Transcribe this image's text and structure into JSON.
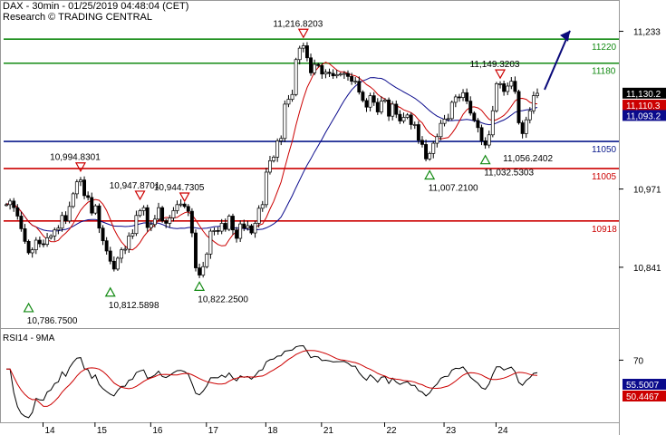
{
  "header": {
    "title": "DAX - 30min - 01/25/2019 04:48:04 (CET)",
    "source": "Research © TRADING CENTRAL"
  },
  "rsi_title": "RSI14 - 9MA",
  "colors": {
    "price": "#000000",
    "ma_red": "#cc0000",
    "ma_blue": "#0a0a8c",
    "resistance": "#138a13",
    "pivot": "#0a1a8c",
    "support": "#cc0000",
    "arrow": "#0a0a7a",
    "grid": "#bbbbbb"
  },
  "chart_data": [
    {
      "type": "candlestick",
      "title": "DAX - 30min",
      "x_ticks": [
        "14",
        "15",
        "16",
        "17",
        "18",
        "21",
        "22",
        "23",
        "24"
      ],
      "y_ticks": [
        "11,233",
        "10,971",
        "10,841"
      ],
      "ylim": [
        10740,
        11285
      ],
      "price_labels": [
        {
          "value": 11130.2,
          "text": "11,130.2",
          "color": "#000000"
        },
        {
          "value": 11110.3,
          "text": "11,110.3",
          "color": "#cc0000"
        },
        {
          "value": 11093.2,
          "text": "11,093.2",
          "color": "#0a0a8c"
        }
      ],
      "levels": [
        {
          "value": 11220,
          "label": "11220",
          "kind": "resistance"
        },
        {
          "value": 11180,
          "label": "11180",
          "kind": "resistance"
        },
        {
          "value": 11050,
          "label": "11050",
          "kind": "pivot"
        },
        {
          "value": 11005,
          "label": "11005",
          "kind": "support"
        },
        {
          "value": 10918,
          "label": "10918",
          "kind": "support"
        }
      ],
      "annotations": [
        {
          "label": "10,786.7500",
          "value": 10786.75,
          "marker": "low",
          "bar": 6
        },
        {
          "label": "10,994.8301",
          "value": 10994.83,
          "marker": "high",
          "bar": 20
        },
        {
          "label": "10,812.5898",
          "value": 10812.59,
          "marker": "low",
          "bar": 28
        },
        {
          "label": "10,947.8701",
          "value": 10947.87,
          "marker": "high",
          "bar": 36
        },
        {
          "label": "10,944.7305",
          "value": 10944.73,
          "marker": "high",
          "bar": 48
        },
        {
          "label": "10,822.2500",
          "value": 10822.25,
          "marker": "low",
          "bar": 52
        },
        {
          "label": "11,216.8203",
          "value": 11216.82,
          "marker": "high",
          "bar": 80
        },
        {
          "label": "11,007.2100",
          "value": 11007.21,
          "marker": "low",
          "bar": 114
        },
        {
          "label": "11,032.5303",
          "value": 11032.53,
          "marker": "low",
          "bar": 129
        },
        {
          "label": "11,149.3203",
          "value": 11149.32,
          "marker": "high",
          "bar": 133
        },
        {
          "label": "11,056.2402",
          "value": 11056.24,
          "marker": "none",
          "bar": 139
        }
      ],
      "close": [
        10945,
        10951,
        10940,
        10926,
        10905,
        10884,
        10865,
        10870,
        10886,
        10880,
        10879,
        10890,
        10893,
        10903,
        10906,
        10927,
        10918,
        10942,
        10963,
        10983,
        10986,
        10960,
        10957,
        10931,
        10943,
        10906,
        10885,
        10868,
        10851,
        10838,
        10856,
        10870,
        10871,
        10893,
        10897,
        10927,
        10935,
        10940,
        10907,
        10912,
        10921,
        10940,
        10918,
        10914,
        10923,
        10935,
        10945,
        10946,
        10942,
        10934,
        10898,
        10840,
        10828,
        10842,
        10863,
        10901,
        10902,
        10901,
        10914,
        10904,
        10926,
        10903,
        10889,
        10913,
        10906,
        10910,
        10898,
        10914,
        10939,
        10945,
        10999,
        11018,
        11024,
        11051,
        11055,
        11112,
        11120,
        11128,
        11186,
        11205,
        11209,
        11189,
        11164,
        11178,
        11176,
        11162,
        11165,
        11163,
        11159,
        11161,
        11162,
        11163,
        11158,
        11150,
        11150,
        11132,
        11118,
        11107,
        11126,
        11115,
        11099,
        11117,
        11119,
        11092,
        11112,
        11095,
        11084,
        11090,
        11094,
        11078,
        11078,
        11052,
        11045,
        11021,
        11030,
        11047,
        11058,
        11080,
        11087,
        11088,
        11115,
        11124,
        11123,
        11131,
        11117,
        11097,
        11085,
        11073,
        11051,
        11044,
        11061,
        11101,
        11146,
        11146,
        11133,
        11142,
        11150,
        11133,
        11081,
        11063,
        11086,
        11101,
        11126,
        11130
      ],
      "rsi": {
        "ylim": [
          0,
          100
        ],
        "tick": "70",
        "value_labels": [
          "55.5007",
          "50.4467"
        ]
      }
    }
  ]
}
